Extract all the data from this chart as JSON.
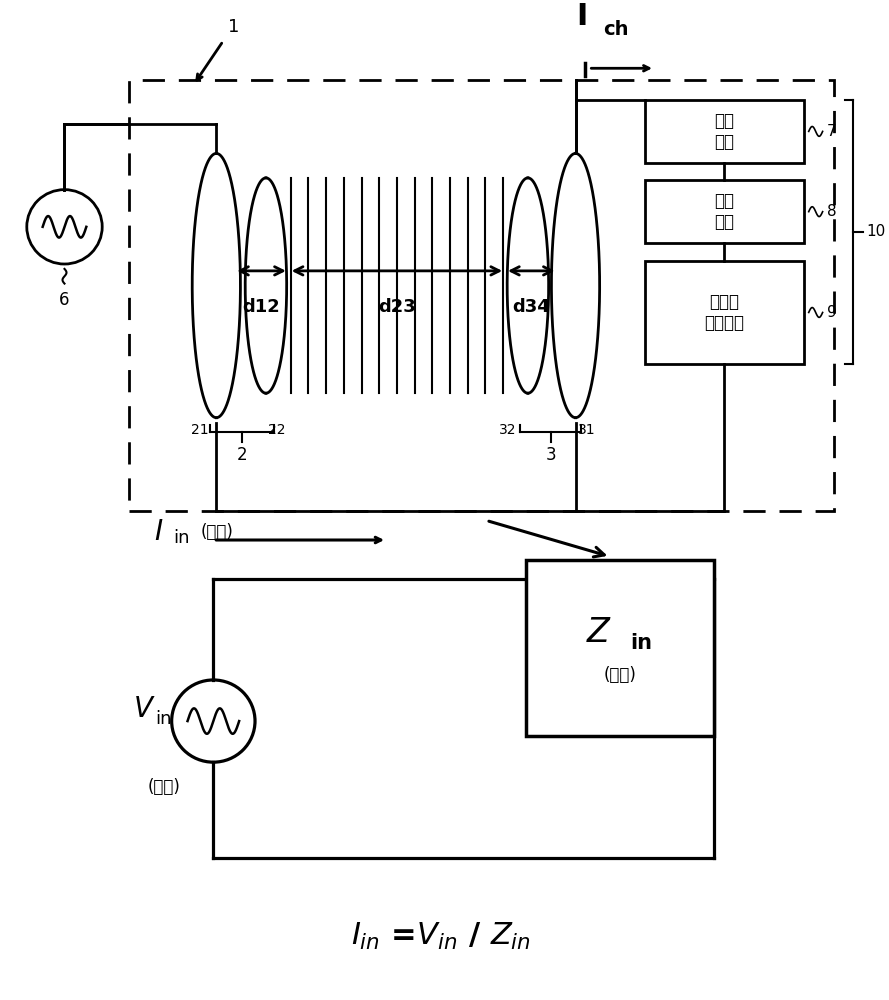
{
  "bg_color": "#ffffff",
  "line_color": "#000000",
  "label_1": "1",
  "label_6": "6",
  "label_21": "21",
  "label_22": "22",
  "label_32": "32",
  "label_31": "31",
  "label_2": "2",
  "label_3": "3",
  "label_d12": "d12",
  "label_d23": "d23",
  "label_d34": "d34",
  "box7_text": "稳定\n电路",
  "box8_text": "充电\n电路",
  "box9_text": "锂离子\n二次电池",
  "label_7": "7",
  "label_8": "8",
  "label_9": "9",
  "label_10": "10",
  "ich_text": "I",
  "ich_sub": "ch",
  "vin_text": "V",
  "vin_sub": "in",
  "vin_note": "(电压)",
  "iin_text": "I",
  "iin_sub": "in",
  "iin_note": "(电流)",
  "zin_text": "Z",
  "zin_sub": "in",
  "zin_note": "(阻抗)",
  "formula": "I$_{in}$ =V$_{in}$ / Z$_{in}$"
}
